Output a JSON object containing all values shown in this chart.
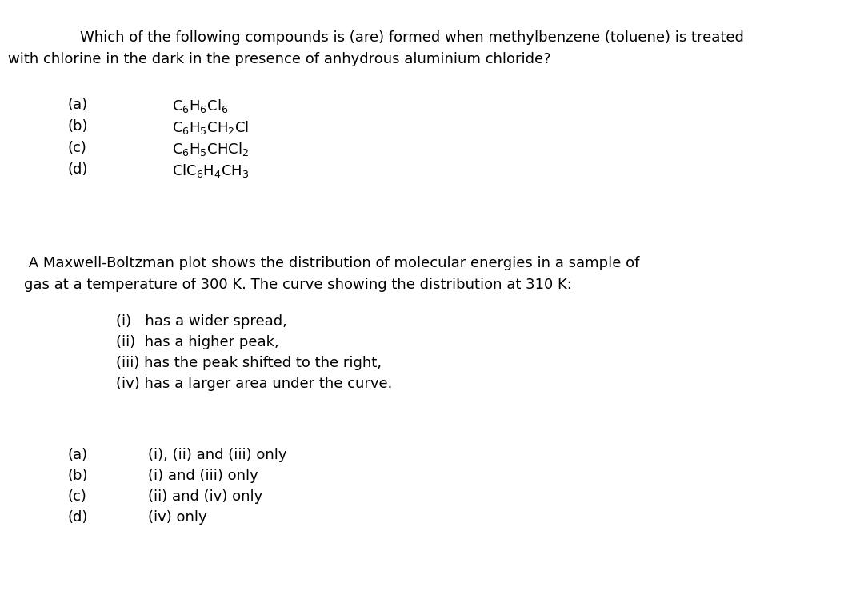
{
  "background_color": "#ffffff",
  "figsize": [
    10.8,
    7.39
  ],
  "dpi": 100,
  "q1_line1": "Which of the following compounds is (are) formed when methylbenzene (toluene) is treated",
  "q1_line2": "with chlorine in the dark in the presence of anhydrous aluminium chloride?",
  "q1_labels": [
    "(a)",
    "(b)",
    "(c)",
    "(d)"
  ],
  "q2_line1": " A Maxwell-Boltzman plot shows the distribution of molecular energies in a sample of",
  "q2_line2": "gas at a temperature of 300 K. The curve showing the distribution at 310 K:",
  "q2_items": [
    "(i)   has a wider spread,",
    "(ii)  has a higher peak,",
    "(iii) has the peak shifted to the right,",
    "(iv) has a larger area under the curve."
  ],
  "q3_labels": [
    "(a)",
    "(b)",
    "(c)",
    "(d)"
  ],
  "q3_options": [
    "(i), (ii) and (iii) only",
    "(i) and (iii) only",
    "(ii) and (iv) only",
    "(iv) only"
  ],
  "font_size": 13.0,
  "font_family": "DejaVu Sans"
}
